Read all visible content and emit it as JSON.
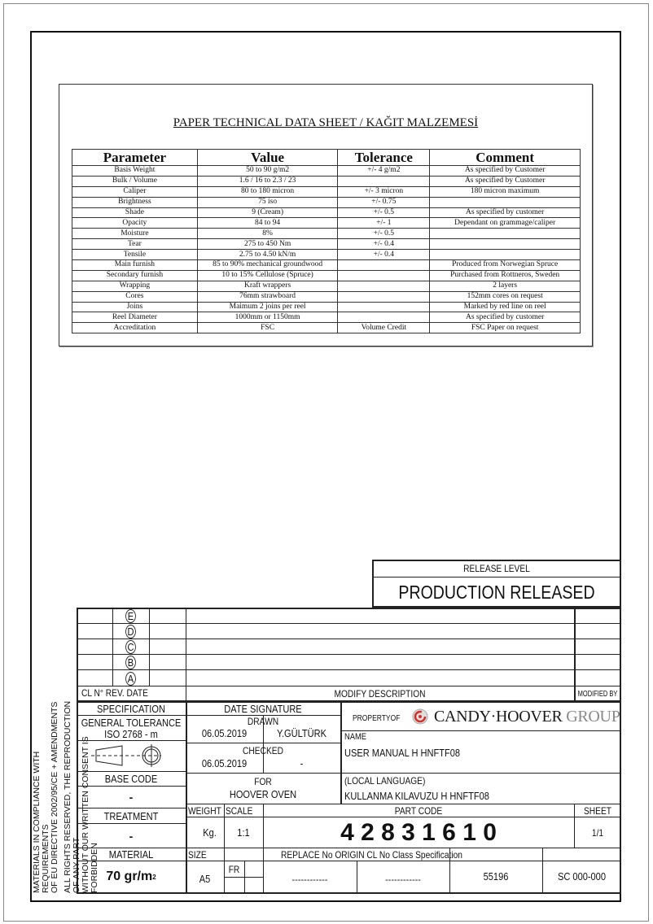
{
  "sheet": {
    "title": "PAPER TECHNICAL DATA SHEET / KAĞIT MALZEMESİ",
    "columns": [
      "Parameter",
      "Value",
      "Tolerance",
      "Comment"
    ],
    "rows": [
      [
        "Basis Weight",
        "50 to 90 g/m2",
        "+/- 4 g/m2",
        "As specified by Customer"
      ],
      [
        "Bulk / Volume",
        "1.6 / 16 to 2.3 / 23",
        "",
        "As specified by Customer"
      ],
      [
        "Caliper",
        "80 to 180 micron",
        "+/- 3 micron",
        "180 micron maximum"
      ],
      [
        "Brightness",
        "75 iso",
        "+/- 0.75",
        ""
      ],
      [
        "Shade",
        "9 (Cream)",
        "+/- 0.5",
        "As specified by customer"
      ],
      [
        "Opacity",
        "84 to 94",
        "+/- 1",
        "Dependant on grammage/caliper"
      ],
      [
        "Moisture",
        "8%",
        "+/- 0.5",
        ""
      ],
      [
        "Tear",
        "275 to 450 Nm",
        "+/- 0.4",
        ""
      ],
      [
        "Tensile",
        "2.75 to 4.50 kN/m",
        "+/- 0.4",
        ""
      ],
      [
        "Main furnish",
        "85 to 90% mechanical groundwood",
        "",
        "Produced from Norwegian Spruce"
      ],
      [
        "Secondary furnish",
        "10 to 15% Cellulose (Spruce)",
        "",
        "Purchased from Rottneros, Sweden"
      ],
      [
        "Wrapping",
        "Kraft wrappers",
        "",
        "2 layers"
      ],
      [
        "Cores",
        "76mm strawboard",
        "",
        "152mm cores on request"
      ],
      [
        "Joins",
        "Maimum 2 joins per reel",
        "",
        "Marked by red line on reel"
      ],
      [
        "Reel Diameter",
        "1000mm or 1150mm",
        "",
        "As specified by customer"
      ],
      [
        "Accreditation",
        "FSC",
        "Volume Credit",
        "FSC Paper on request"
      ]
    ]
  },
  "title_block": {
    "release_level_label": "RELEASE LEVEL",
    "release_level": "PRODUCTION RELEASED",
    "revisions": [
      "E",
      "D",
      "C",
      "B",
      "A"
    ],
    "rev_header": {
      "cl_no": "CL N°",
      "rev": "REV.",
      "date": "DATE",
      "description": "MODIFY DESCRIPTION",
      "modified_by": "MODIFIED BY"
    },
    "side_note_1": "MATERIALS IN COMPLIANCE WITH REQUIREMENTS",
    "side_note_2": "OF EU DIRECTIVE 2002/95/CE + AMENDMENTS",
    "side_note_3": "ALL RIGHTS RESERVED, THE REPRODUCTION OF ANY PART",
    "side_note_4": "WITHOUT OUR WRITTEN CONSENT IS FORBIDDEN",
    "specification_label": "SPECIFICATION",
    "general_tolerance": "GENERAL TOLERANCE",
    "iso": "ISO 2768 - m",
    "base_code_label": "BASE CODE",
    "base_code": "-",
    "treatment_label": "TREATMENT",
    "treatment": "-",
    "material_label": "MATERIAL",
    "material": "70 gr/m",
    "material_sup": "2",
    "date_signature": "DATE SIGNATURE",
    "drawn_label": "DRAWN",
    "drawn_date": "06.05.2019",
    "drawn_by": "Y.GÜLTÜRK",
    "checked_label": "CHECKED",
    "checked_date": "06.05.2019",
    "checked_by": "-",
    "for_label": "FOR",
    "for_value": "HOOVER OVEN",
    "weight_label": "WEIGHT",
    "scale_label": "SCALE",
    "weight_unit": "Kg.",
    "scale": "1:1",
    "size_label": "SIZE",
    "size": "A5",
    "fr": "FR",
    "property_of": "PROPERTYOF",
    "brand": "CANDY·HOOVER",
    "brand_group": "GROUP",
    "brand_color": "#d0312d",
    "name_label": "NAME",
    "name": "USER MANUAL H HNFTF08",
    "local_label": "(LOCAL LANGUAGE)",
    "local_name": "KULLANMA KILAVUZU H HNFTF08",
    "part_code_label": "PART CODE",
    "part_code": "4 2 8 3 1 6 1 0",
    "sheet_label": "SHEET",
    "sheet": "1/1",
    "replace_label": "REPLACE No ORIGIN CL No Class Specification",
    "replace": "------------",
    "origin": "------------",
    "cl_no": "55196",
    "class_spec": "SC 000-000"
  }
}
